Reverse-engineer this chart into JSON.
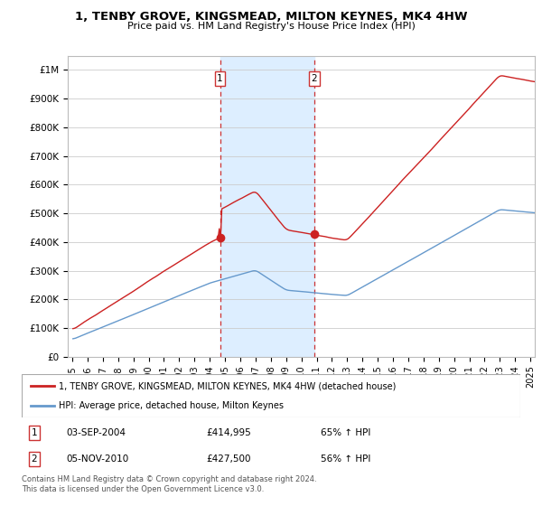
{
  "title": "1, TENBY GROVE, KINGSMEAD, MILTON KEYNES, MK4 4HW",
  "subtitle": "Price paid vs. HM Land Registry's House Price Index (HPI)",
  "legend_line1": "1, TENBY GROVE, KINGSMEAD, MILTON KEYNES, MK4 4HW (detached house)",
  "legend_line2": "HPI: Average price, detached house, Milton Keynes",
  "footer": "Contains HM Land Registry data © Crown copyright and database right 2024.\nThis data is licensed under the Open Government Licence v3.0.",
  "annotation1": {
    "label": "1",
    "date": "03-SEP-2004",
    "price": "£414,995",
    "pct": "65% ↑ HPI"
  },
  "annotation2": {
    "label": "2",
    "date": "05-NOV-2010",
    "price": "£427,500",
    "pct": "56% ↑ HPI"
  },
  "xlim_lo": 1994.7,
  "xlim_hi": 2025.3,
  "ylim_lo": 0,
  "ylim_hi": 1050000,
  "yticks": [
    0,
    100000,
    200000,
    300000,
    400000,
    500000,
    600000,
    700000,
    800000,
    900000,
    1000000
  ],
  "ytick_labels": [
    "£0",
    "£100K",
    "£200K",
    "£300K",
    "£400K",
    "£500K",
    "£600K",
    "£700K",
    "£800K",
    "£900K",
    "£1M"
  ],
  "xticks": [
    1995,
    1996,
    1997,
    1998,
    1999,
    2000,
    2001,
    2002,
    2003,
    2004,
    2005,
    2006,
    2007,
    2008,
    2009,
    2010,
    2011,
    2012,
    2013,
    2014,
    2015,
    2016,
    2017,
    2018,
    2019,
    2020,
    2021,
    2022,
    2023,
    2024,
    2025
  ],
  "hpi_color": "#6699cc",
  "price_color": "#cc2222",
  "vline_color": "#cc3333",
  "vline_x1": 2004.67,
  "vline_x2": 2010.84,
  "marker1_x": 2004.67,
  "marker1_y": 414995,
  "marker2_x": 2010.84,
  "marker2_y": 427500,
  "shade_color": "#ddeeff",
  "bg_color": "#ffffff"
}
